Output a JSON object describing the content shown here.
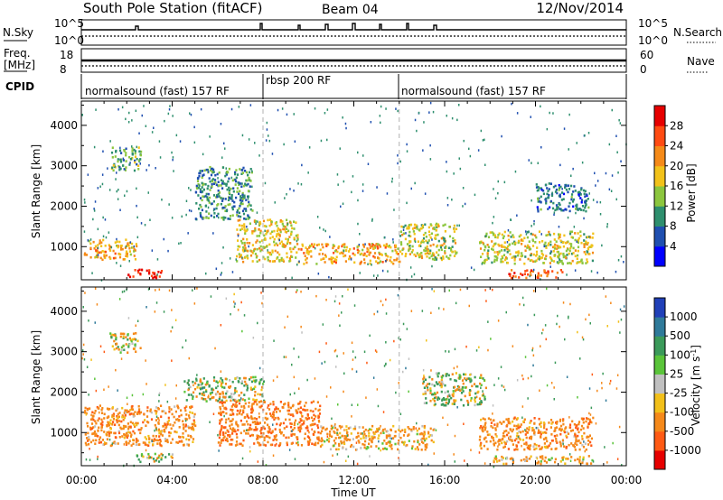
{
  "header": {
    "station": "South Pole Station (fitACF)",
    "beam": "Beam 04",
    "date": "12/Nov/2014"
  },
  "meta_panels": {
    "nsky": {
      "label": "N.Sky",
      "tick_top": "10^5",
      "tick_bottom": "10^0"
    },
    "nsearch": {
      "label": "N.Search",
      "tick_top": "10^5",
      "tick_bottom": "10^0"
    },
    "freq": {
      "label_line1": "Freq.",
      "label_line2": "[MHz]",
      "tick_top": "18",
      "tick_bottom": "8"
    },
    "nave": {
      "label": "Nave",
      "tick_top": "60",
      "tick_bottom": "0"
    },
    "cpid": {
      "label": "CPID",
      "segments": [
        {
          "text": "normalsound (fast) 157 RF",
          "start_hour": 0,
          "end_hour": 8
        },
        {
          "text": "rbsp 200 RF",
          "start_hour": 8,
          "end_hour": 14
        },
        {
          "text": "normalsound (fast) 157 RF",
          "start_hour": 14,
          "end_hour": 24
        }
      ]
    }
  },
  "colorbars": {
    "power": {
      "label": "Power [dB]",
      "ticks": [
        "4",
        "8",
        "12",
        "16",
        "20",
        "24",
        "28"
      ],
      "colors": [
        "#0000ff",
        "#1f4fb0",
        "#2e8f6e",
        "#8cc63e",
        "#f2c21a",
        "#f58a18",
        "#ff4b12",
        "#e60000"
      ]
    },
    "velocity": {
      "label": "Velocity [m s",
      "label_sup": "-1",
      "label_close": "]",
      "ticks": [
        "1000",
        "500",
        "100",
        "25",
        "-25",
        "-100",
        "-500",
        "-1000"
      ],
      "colors": [
        "#2040b8",
        "#2f7a9a",
        "#3b9a5a",
        "#5ac43a",
        "#c0c0c0",
        "#f2c01a",
        "#f5891a",
        "#ff5a14",
        "#e60000"
      ]
    }
  },
  "chart_data": [
    {
      "type": "heatmap",
      "title": "Power",
      "xlabel": "",
      "ylabel": "Slant Range [km]",
      "xlim": [
        0,
        24
      ],
      "ylim": [
        180,
        4600
      ],
      "xticks": [
        "00:00",
        "04:00",
        "08:00",
        "12:00",
        "16:00",
        "20:00",
        "00:00"
      ],
      "yticks": [
        1000,
        2000,
        3000,
        4000
      ],
      "colorbar": "Power [dB]",
      "blobs": [
        {
          "t0": 0.1,
          "t1": 2.4,
          "r0": 700,
          "r1": 1200,
          "v": 18
        },
        {
          "t0": 1.3,
          "t1": 2.6,
          "r0": 2900,
          "r1": 3500,
          "v": 10
        },
        {
          "t0": 2.0,
          "t1": 3.5,
          "r0": 250,
          "r1": 480,
          "v": 28
        },
        {
          "t0": 5.0,
          "t1": 7.5,
          "r0": 1700,
          "r1": 3000,
          "v": 8
        },
        {
          "t0": 6.8,
          "t1": 9.5,
          "r0": 650,
          "r1": 1700,
          "v": 16
        },
        {
          "t0": 9.5,
          "t1": 14.0,
          "r0": 600,
          "r1": 1100,
          "v": 18
        },
        {
          "t0": 14.0,
          "t1": 16.5,
          "r0": 700,
          "r1": 1600,
          "v": 14
        },
        {
          "t0": 17.5,
          "t1": 22.5,
          "r0": 600,
          "r1": 1400,
          "v": 14
        },
        {
          "t0": 18.8,
          "t1": 21.2,
          "r0": 250,
          "r1": 450,
          "v": 24
        },
        {
          "t0": 20.0,
          "t1": 22.3,
          "r0": 1900,
          "r1": 2600,
          "v": 6
        }
      ]
    },
    {
      "type": "heatmap",
      "title": "Velocity",
      "xlabel": "Time UT",
      "ylabel": "Slant Range [km]",
      "xlim": [
        0,
        24
      ],
      "ylim": [
        180,
        4600
      ],
      "xticks": [
        "00:00",
        "04:00",
        "08:00",
        "12:00",
        "16:00",
        "20:00",
        "00:00"
      ],
      "yticks": [
        1000,
        2000,
        3000,
        4000
      ],
      "colorbar": "Velocity [m s-1]",
      "blobs": [
        {
          "t0": 0.1,
          "t1": 5.0,
          "r0": 700,
          "r1": 1700,
          "v": -300
        },
        {
          "t0": 1.2,
          "t1": 2.6,
          "r0": 3000,
          "r1": 3500,
          "v": -60
        },
        {
          "t0": 2.2,
          "t1": 4.0,
          "r0": 300,
          "r1": 500,
          "v": 0
        },
        {
          "t0": 4.5,
          "t1": 8.0,
          "r0": 1800,
          "r1": 2400,
          "v": 0
        },
        {
          "t0": 6.0,
          "t1": 10.5,
          "r0": 700,
          "r1": 1800,
          "v": -450
        },
        {
          "t0": 10.5,
          "t1": 15.5,
          "r0": 600,
          "r1": 1200,
          "v": -200
        },
        {
          "t0": 15.0,
          "t1": 17.8,
          "r0": 1700,
          "r1": 2500,
          "v": 0
        },
        {
          "t0": 17.5,
          "t1": 22.5,
          "r0": 600,
          "r1": 1400,
          "v": -300
        },
        {
          "t0": 18.0,
          "t1": 22.5,
          "r0": 250,
          "r1": 450,
          "v": -200
        }
      ]
    }
  ]
}
